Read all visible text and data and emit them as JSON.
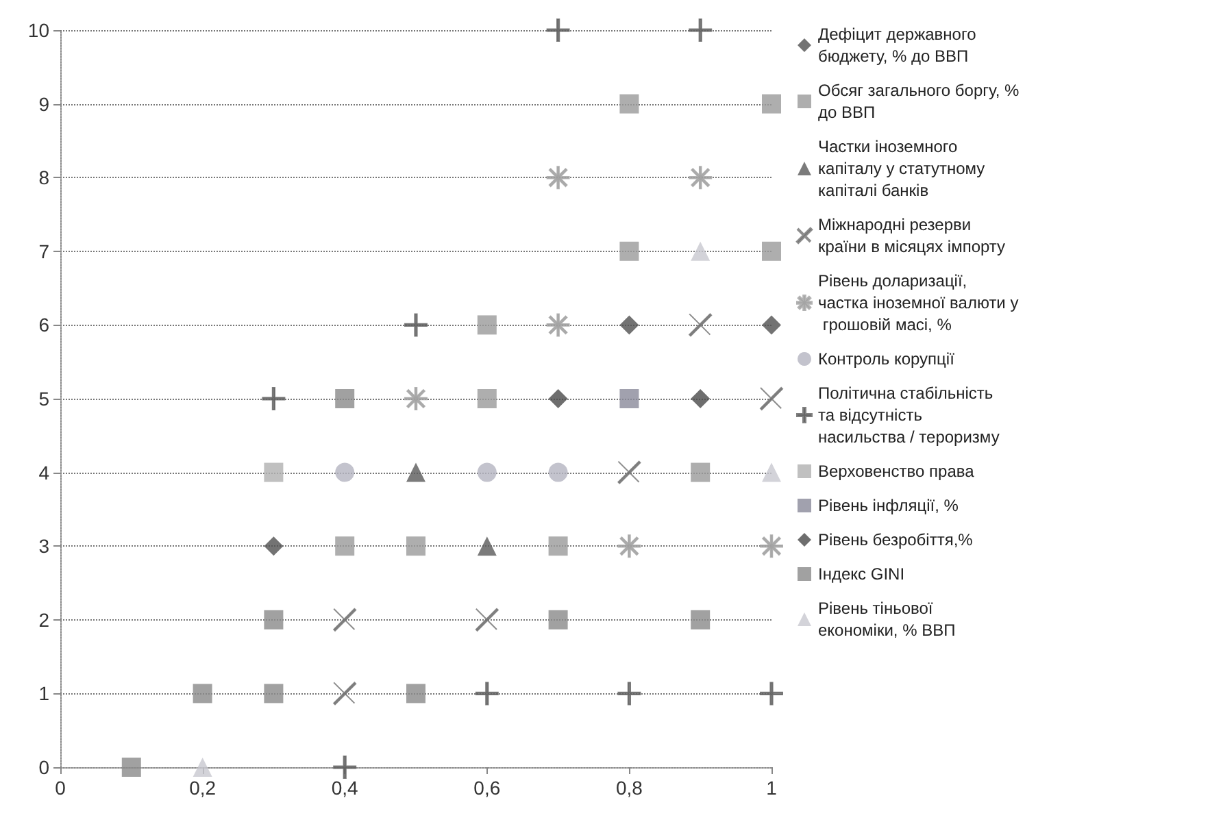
{
  "chart_data": {
    "type": "scatter",
    "xlim": [
      0,
      1
    ],
    "xticks": [
      0,
      {
        "value": 0.2,
        "label": "0,2"
      },
      {
        "value": 0.4,
        "label": "0,4"
      },
      {
        "value": 0.6,
        "label": "0,6"
      },
      {
        "value": 0.8,
        "label": "0,8"
      },
      1
    ],
    "ylim": [
      0,
      10
    ],
    "yticks": [
      0,
      1,
      2,
      3,
      4,
      5,
      6,
      7,
      8,
      9,
      10
    ],
    "grid": "y",
    "legend": "right",
    "series": [
      {
        "name": "Дефіцит державного бюджету, % до ВВП",
        "color": "#505050",
        "marker": "diamond",
        "x": [
          0.8,
          1,
          0.3
        ],
        "values": [
          6,
          6,
          3
        ]
      },
      {
        "name": "Обсяг загального боргу, % до ВВП",
        "color": "#9a9a9a",
        "marker": "square",
        "x": [
          0.8,
          1,
          0.8,
          1,
          0.6,
          0.6,
          0.9,
          0.4,
          0.5,
          0.7
        ],
        "values": [
          9,
          9,
          7,
          7,
          6,
          5,
          4,
          3,
          3,
          3
        ]
      },
      {
        "name": "Частки іноземного капіталу у статутному капіталі банків",
        "color": "#5a5a5a",
        "marker": "triangle",
        "x": [
          0.5,
          0.6
        ],
        "values": [
          4,
          3
        ]
      },
      {
        "name": "Міжнародні резерви країни в місяцях імпорту",
        "color": "#707070",
        "marker": "cross",
        "x": [
          0.9,
          1,
          0.8,
          0.4,
          0.6,
          0.4
        ],
        "values": [
          6,
          5,
          4,
          2,
          2,
          1
        ]
      },
      {
        "name": "Рівень доларизації, частка іноземної валюти у грошовій масі, %",
        "color": "#a0a0a0",
        "marker": "star",
        "x": [
          0.7,
          0.9,
          0.7,
          0.5,
          0.8,
          1
        ],
        "values": [
          8,
          8,
          6,
          5,
          3,
          3
        ]
      },
      {
        "name": "Контроль корупції",
        "color": "#b4b4c0",
        "marker": "circle",
        "x": [
          0.4,
          0.6,
          0.7
        ],
        "values": [
          4,
          4,
          4
        ]
      },
      {
        "name": "Політична стабільність та відсутність насильства / тероризму",
        "color": "#606060",
        "marker": "plus",
        "x": [
          0.7,
          0.9,
          0.5,
          0.3,
          0.6,
          0.8,
          1,
          0.4
        ],
        "values": [
          10,
          10,
          6,
          5,
          1,
          1,
          1,
          0
        ]
      },
      {
        "name": "Верховенство права",
        "color": "#b0b0b0",
        "marker": "square",
        "x": [
          0.3
        ],
        "values": [
          4
        ]
      },
      {
        "name": "Рівень інфляції, %",
        "color": "#8a8a9a",
        "marker": "square",
        "x": [
          0.8
        ],
        "values": [
          5
        ]
      },
      {
        "name": "Рівень безробіття,%",
        "color": "#4a4a4a",
        "marker": "diamond",
        "x": [
          0.7,
          0.9
        ],
        "values": [
          5,
          5
        ]
      },
      {
        "name": "Індекс GINI",
        "color": "#8a8a8a",
        "marker": "square",
        "x": [
          0.4,
          0.3,
          0.7,
          0.9,
          0.2,
          0.3,
          0.5,
          0.1
        ],
        "values": [
          5,
          2,
          2,
          2,
          1,
          1,
          1,
          0
        ]
      },
      {
        "name": "Рівень тіньової економіки, % ВВП",
        "color": "#c8c8d0",
        "marker": "triangle",
        "x": [
          0.9,
          1,
          0.2
        ],
        "values": [
          7,
          4,
          0
        ]
      }
    ]
  }
}
